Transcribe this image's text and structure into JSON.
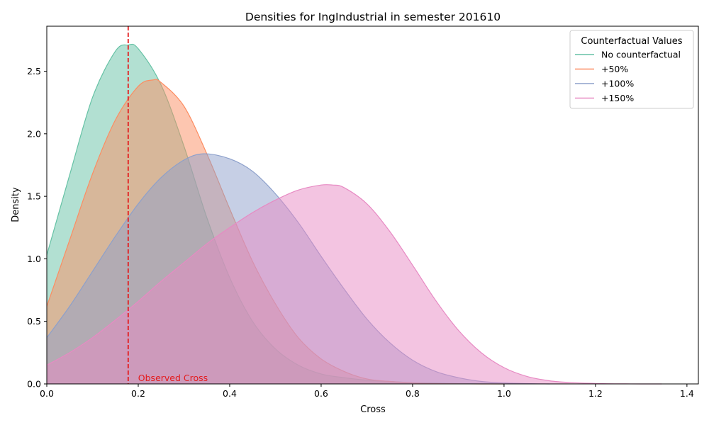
{
  "chart_data": {
    "type": "area",
    "title": "Densities for IngIndustrial in semester 201610",
    "xlabel": "Cross",
    "ylabel": "Density",
    "xlim": [
      0.0,
      1.425
    ],
    "ylim": [
      0.0,
      2.86
    ],
    "xticks": [
      0.0,
      0.2,
      0.4,
      0.6,
      0.8,
      1.0,
      1.2,
      1.4
    ],
    "xtick_labels": [
      "0.0",
      "0.2",
      "0.4",
      "0.6",
      "0.8",
      "1.0",
      "1.2",
      "1.4"
    ],
    "yticks": [
      0.0,
      0.5,
      1.0,
      1.5,
      2.0,
      2.5
    ],
    "ytick_labels": [
      "0.0",
      "0.5",
      "1.0",
      "1.5",
      "2.0",
      "2.5"
    ],
    "grid": false,
    "legend": {
      "title": "Counterfactual Values",
      "position": "top-right"
    },
    "series": [
      {
        "name": "No counterfactual",
        "color": "#66c2a5",
        "x": [
          0.0,
          0.05,
          0.1,
          0.15,
          0.178,
          0.2,
          0.25,
          0.3,
          0.35,
          0.4,
          0.45,
          0.5,
          0.55,
          0.6,
          0.65,
          0.7,
          0.75,
          0.8,
          0.85,
          0.9,
          0.95,
          1.0
        ],
        "y": [
          1.03,
          1.67,
          2.29,
          2.66,
          2.71,
          2.68,
          2.39,
          1.9,
          1.33,
          0.85,
          0.5,
          0.28,
          0.15,
          0.08,
          0.05,
          0.03,
          0.02,
          0.01,
          0.006,
          0.003,
          0.001,
          0.0
        ]
      },
      {
        "name": "+50%",
        "color": "#fc8d62",
        "x": [
          0.0,
          0.05,
          0.1,
          0.15,
          0.2,
          0.232,
          0.25,
          0.3,
          0.35,
          0.4,
          0.45,
          0.5,
          0.55,
          0.6,
          0.65,
          0.7,
          0.75,
          0.8,
          0.85,
          0.9,
          0.95,
          1.0
        ],
        "y": [
          0.62,
          1.15,
          1.68,
          2.11,
          2.38,
          2.43,
          2.41,
          2.22,
          1.84,
          1.4,
          0.98,
          0.64,
          0.37,
          0.2,
          0.1,
          0.04,
          0.02,
          0.008,
          0.003,
          0.001,
          0.0,
          0.0
        ]
      },
      {
        "name": "+100%",
        "color": "#8da0cb",
        "x": [
          0.0,
          0.05,
          0.1,
          0.15,
          0.2,
          0.25,
          0.3,
          0.343,
          0.4,
          0.45,
          0.5,
          0.55,
          0.6,
          0.65,
          0.7,
          0.75,
          0.8,
          0.85,
          0.9,
          0.95,
          1.0,
          1.05,
          1.1
        ],
        "y": [
          0.37,
          0.62,
          0.9,
          1.18,
          1.44,
          1.65,
          1.79,
          1.84,
          1.8,
          1.7,
          1.52,
          1.29,
          1.02,
          0.76,
          0.52,
          0.33,
          0.19,
          0.1,
          0.05,
          0.02,
          0.008,
          0.003,
          0.0
        ]
      },
      {
        "name": "+150%",
        "color": "#e78ac3",
        "x": [
          0.0,
          0.05,
          0.1,
          0.15,
          0.2,
          0.25,
          0.3,
          0.35,
          0.4,
          0.45,
          0.5,
          0.55,
          0.6,
          0.625,
          0.65,
          0.7,
          0.75,
          0.8,
          0.85,
          0.9,
          0.95,
          1.0,
          1.05,
          1.1,
          1.15,
          1.2,
          1.25,
          1.3,
          1.345
        ],
        "y": [
          0.15,
          0.25,
          0.37,
          0.51,
          0.66,
          0.82,
          0.97,
          1.12,
          1.25,
          1.37,
          1.47,
          1.55,
          1.59,
          1.59,
          1.57,
          1.44,
          1.22,
          0.95,
          0.67,
          0.43,
          0.25,
          0.13,
          0.06,
          0.025,
          0.01,
          0.004,
          0.001,
          0.0,
          0.0
        ]
      }
    ],
    "annotations": [
      {
        "type": "vline",
        "x": 0.178,
        "color": "#e41a1c",
        "style": "dashed",
        "label": "Observed Cross",
        "label_color": "#e41a1c"
      }
    ]
  }
}
